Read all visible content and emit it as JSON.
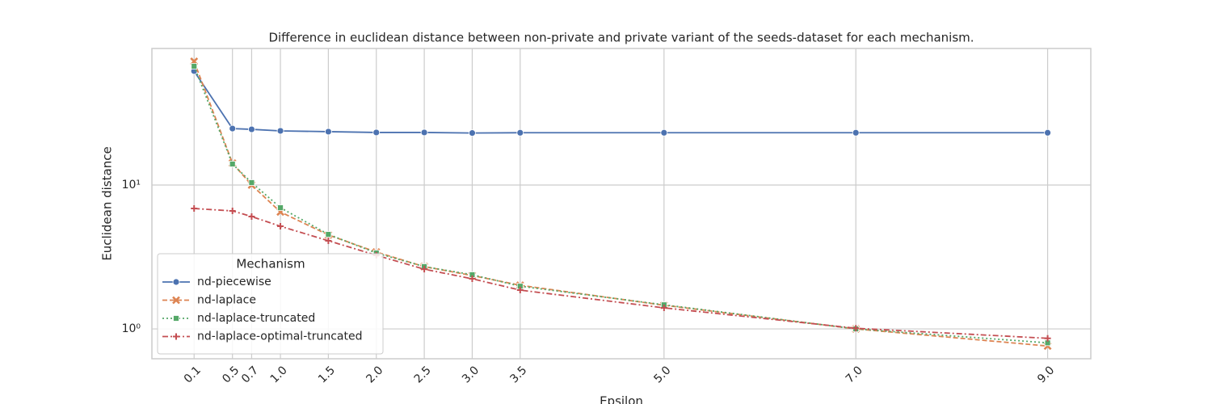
{
  "chart_data": {
    "type": "line",
    "title": "Difference in euclidean distance between non-private and private variant of the seeds-dataset for each mechanism.",
    "x_label": "Epsilon",
    "y_label": "Euclidean distance",
    "x": [
      0.1,
      0.5,
      0.7,
      1.0,
      1.5,
      2.0,
      2.5,
      3.0,
      3.5,
      5.0,
      7.0,
      9.0
    ],
    "xlim": [
      -0.34,
      9.45
    ],
    "xticks": [
      0.1,
      0.5,
      0.7,
      {
        "value": 1,
        "label": "1.0"
      },
      1.5,
      {
        "value": 2,
        "label": "2.0"
      },
      2.5,
      {
        "value": 3,
        "label": "3.0"
      },
      3.5,
      {
        "value": 5,
        "label": "5.0"
      },
      {
        "value": 7,
        "label": "7.0"
      },
      {
        "value": 9,
        "label": "9.0"
      }
    ],
    "ylim": [
      0.62,
      89
    ],
    "y_scale": "log",
    "yticks": [
      {
        "value": 1,
        "label": "10⁰"
      },
      {
        "value": 10,
        "label": "10¹"
      }
    ],
    "grid": true,
    "legend_title": "Mechanism",
    "legend_position": "lower left",
    "series": [
      {
        "name": "nd-piecewise",
        "color": "#4c72b0",
        "dash": "solid",
        "marker": "circle",
        "values": [
          62,
          24.7,
          24.4,
          23.8,
          23.5,
          23.2,
          23.2,
          23.0,
          23.1,
          23.1,
          23.1,
          23.1
        ]
      },
      {
        "name": "nd-laplace",
        "color": "#dd8452",
        "dash": "dashed",
        "marker": "x",
        "values": [
          72.4,
          14.2,
          10.0,
          6.5,
          4.5,
          3.42,
          2.71,
          2.35,
          2.01,
          1.46,
          1.0,
          0.76
        ]
      },
      {
        "name": "nd-laplace-truncated",
        "color": "#55a868",
        "dash": "dotted",
        "marker": "square",
        "values": [
          67,
          14.0,
          10.4,
          6.96,
          4.54,
          3.37,
          2.71,
          2.38,
          1.98,
          1.47,
          1.0,
          0.8
        ]
      },
      {
        "name": "nd-laplace-optimal-truncated",
        "color": "#c44e52",
        "dash": "dashdot",
        "marker": "plus",
        "values": [
          6.87,
          6.61,
          6.04,
          5.17,
          4.1,
          3.25,
          2.6,
          2.23,
          1.86,
          1.4,
          1.01,
          0.86
        ]
      }
    ]
  }
}
